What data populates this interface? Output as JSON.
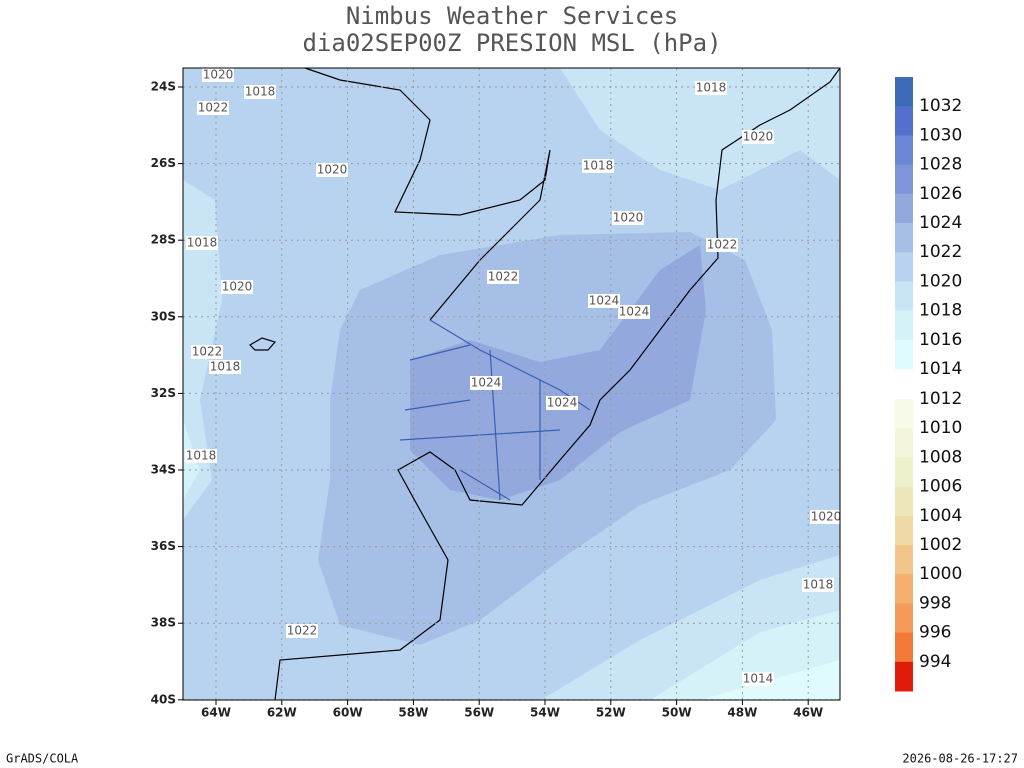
{
  "header": {
    "title": "Nimbus Weather Services",
    "subtitle": "dia02SEP00Z PRESION MSL (hPa)"
  },
  "lat_ticks": [
    "24S",
    "26S",
    "28S",
    "30S",
    "32S",
    "34S",
    "36S",
    "38S",
    "40S"
  ],
  "lon_ticks": [
    "64W",
    "62W",
    "60W",
    "58W",
    "56W",
    "54W",
    "52W",
    "50W",
    "48W",
    "46W"
  ],
  "colorbar": [
    {
      "label": "1032",
      "color": "#3d6bb8"
    },
    {
      "label": "1030",
      "color": "#5470cc"
    },
    {
      "label": "1028",
      "color": "#6a86d4"
    },
    {
      "label": "1026",
      "color": "#7e96d9"
    },
    {
      "label": "1024",
      "color": "#93a9de"
    },
    {
      "label": "1022",
      "color": "#a6bfe6"
    },
    {
      "label": "1020",
      "color": "#b8d3ef"
    },
    {
      "label": "1018",
      "color": "#c8e4f5"
    },
    {
      "label": "1016",
      "color": "#d5f2f8"
    },
    {
      "label": "1014",
      "color": "#e0fbfd"
    },
    {
      "label": "1012",
      "color": "#f7fae8"
    },
    {
      "label": "1010",
      "color": "#f4f6dc"
    },
    {
      "label": "1008",
      "color": "#eef0cc"
    },
    {
      "label": "1006",
      "color": "#ede6b8"
    },
    {
      "label": "1004",
      "color": "#efd9a5"
    },
    {
      "label": "1002",
      "color": "#f2c58a"
    },
    {
      "label": "1000",
      "color": "#f5af70"
    },
    {
      "label": "998",
      "color": "#f59b5a"
    },
    {
      "label": "996",
      "color": "#f27a38"
    },
    {
      "label": "994",
      "color": "#e01b0a"
    }
  ],
  "contour_labels": [
    "1020",
    "1022",
    "1018",
    "1020",
    "1018",
    "1018",
    "1020",
    "1020",
    "1022",
    "1018",
    "1022",
    "1020",
    "1024",
    "1024",
    "1022",
    "1018",
    "1024",
    "1024",
    "1018",
    "1020",
    "1018",
    "1022",
    "1014"
  ],
  "footer": {
    "left": "GrADS/COLA",
    "right": "2026-08-26-17:27"
  }
}
